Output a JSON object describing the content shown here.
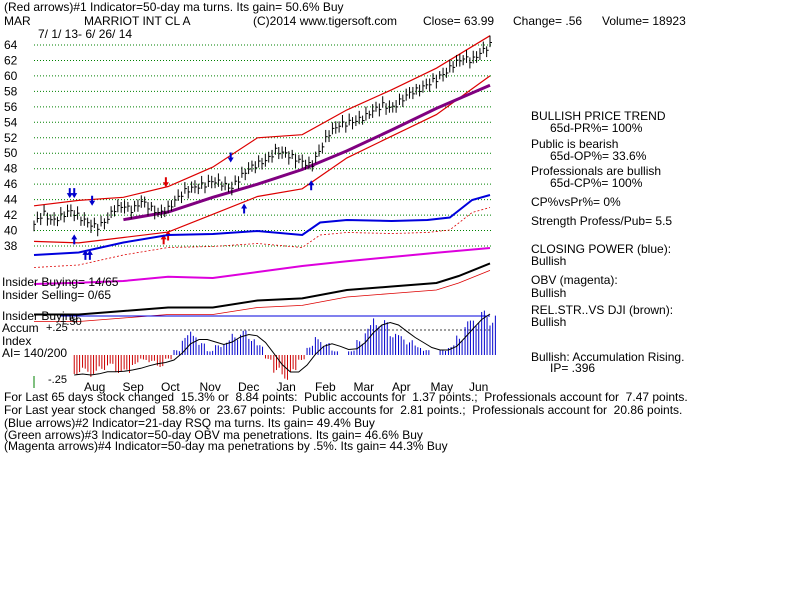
{
  "header": {
    "line1": "(Red arrows)#1 Indicator=50-day ma turns. Its gain= 50.6% Buy",
    "symbol": "MAR",
    "name": "MARRIOT INT CL A",
    "copyright": "(C)2014 www.tigersoft.com",
    "close": "Close= 63.99",
    "change": "Change= .56",
    "volume": "Volume= 18923",
    "range": "7/ 1/ 13- 6/ 26/ 14"
  },
  "side": {
    "trend_title": "BULLISH PRICE TREND",
    "pr": "65d-PR%= 100%",
    "public": "Public is bearish",
    "op": "65d-OP%= 33.6%",
    "prof": "Professionals are bullish",
    "cp": "65d-CP%= 100%",
    "cpvspr": "CP%vsPr%= 0%",
    "strength": "Strength Profess/Pub= 5.5",
    "closing_power": "CLOSING POWER (blue):",
    "cp_status": "Bullish",
    "obv": "OBV (magenta):",
    "obv_status": "Bullish",
    "relstr": "REL.STR..VS DJI (brown):",
    "relstr_status": "Bullish",
    "accum": "Bullish: Accumulation Rising.",
    "ip": "IP= .396"
  },
  "left_labels": {
    "insider_buying": "Insider Buying= 14/65",
    "insider_selling": "Insider Selling= 0/65",
    "insider_buying2": "Insider Buying",
    "accum": "Accum",
    "index": "Index",
    "ai": "AI= 140/200",
    "plus50": "+.50",
    "plus25": "+.25",
    "minus25": "-.25"
  },
  "footer": {
    "l1": "For Last 65 days stock changed  15.3% or  8.84 points:  Public accounts for  1.37 points.;  Professionals account for  7.47 points.",
    "l2": "For Last year stock changed  58.8% or  23.67 points:  Public accounts for  2.81 points.;  Professionals account for  20.86 points.",
    "l3": "(Blue arrows)#2 Indicator=21-day RSQ ma turns. Its gain= 49.4% Buy",
    "l4": "(Green arrows)#3 Indicator=50-day OBV ma penetrations. Its gain= 46.6% Buy",
    "l5": "(Magenta arrows)#4 Indicator=50-day ma penetrations by .5%. Its gain= 44.3% Buy"
  },
  "colors": {
    "price": "#000000",
    "bands": "#dd0000",
    "ma50": "#800080",
    "closing_power": "#0000dd",
    "obv": "#dd00dd",
    "relstr_ma": "#dd0000",
    "accum_pos": "#0000cc",
    "accum_neg": "#cc0000",
    "grid": "#008000",
    "up_arrow": "#0000cc",
    "red_arrow": "#dd0000"
  },
  "chart_data": {
    "type": "line",
    "title": "MARRIOT INT CL A",
    "y_ticks": [
      38,
      40,
      42,
      44,
      46,
      48,
      50,
      52,
      54,
      56,
      58,
      60,
      62,
      64
    ],
    "ylim": [
      37,
      65
    ],
    "months": [
      "Aug",
      "Sep",
      "Oct",
      "Nov",
      "Dec",
      "Jan",
      "Feb",
      "Mar",
      "Apr",
      "May",
      "Jun"
    ],
    "price_close": [
      {
        "t": 0,
        "v": 40.8
      },
      {
        "t": 4,
        "v": 42.3
      },
      {
        "t": 8,
        "v": 41.2
      },
      {
        "t": 12,
        "v": 41.8
      },
      {
        "t": 16,
        "v": 42.6
      },
      {
        "t": 20,
        "v": 41.8
      },
      {
        "t": 24,
        "v": 41.0
      },
      {
        "t": 28,
        "v": 40.4
      },
      {
        "t": 32,
        "v": 41.2
      },
      {
        "t": 36,
        "v": 42.8
      },
      {
        "t": 40,
        "v": 43.2
      },
      {
        "t": 44,
        "v": 42.6
      },
      {
        "t": 48,
        "v": 43.8
      },
      {
        "t": 52,
        "v": 42.9
      },
      {
        "t": 56,
        "v": 42.2
      },
      {
        "t": 60,
        "v": 42.8
      },
      {
        "t": 64,
        "v": 44.2
      },
      {
        "t": 68,
        "v": 45.2
      },
      {
        "t": 72,
        "v": 45.6
      },
      {
        "t": 76,
        "v": 45.9
      },
      {
        "t": 80,
        "v": 46.4
      },
      {
        "t": 84,
        "v": 46.1
      },
      {
        "t": 88,
        "v": 45.4
      },
      {
        "t": 92,
        "v": 46.8
      },
      {
        "t": 96,
        "v": 48.0
      },
      {
        "t": 100,
        "v": 48.6
      },
      {
        "t": 104,
        "v": 49.1
      },
      {
        "t": 108,
        "v": 50.3
      },
      {
        "t": 112,
        "v": 50.0
      },
      {
        "t": 116,
        "v": 49.4
      },
      {
        "t": 120,
        "v": 48.9
      },
      {
        "t": 124,
        "v": 48.3
      },
      {
        "t": 128,
        "v": 50.5
      },
      {
        "t": 132,
        "v": 52.6
      },
      {
        "t": 136,
        "v": 53.6
      },
      {
        "t": 140,
        "v": 53.9
      },
      {
        "t": 144,
        "v": 54.2
      },
      {
        "t": 148,
        "v": 54.7
      },
      {
        "t": 152,
        "v": 55.6
      },
      {
        "t": 156,
        "v": 56.2
      },
      {
        "t": 160,
        "v": 55.8
      },
      {
        "t": 164,
        "v": 56.8
      },
      {
        "t": 168,
        "v": 57.8
      },
      {
        "t": 172,
        "v": 58.2
      },
      {
        "t": 176,
        "v": 58.9
      },
      {
        "t": 180,
        "v": 59.6
      },
      {
        "t": 184,
        "v": 60.4
      },
      {
        "t": 188,
        "v": 61.6
      },
      {
        "t": 192,
        "v": 62.3
      },
      {
        "t": 196,
        "v": 62.0
      },
      {
        "t": 200,
        "v": 63.1
      },
      {
        "t": 204,
        "v": 63.99
      }
    ],
    "ma50": [
      {
        "t": 40,
        "v": 41.4
      },
      {
        "t": 60,
        "v": 42.4
      },
      {
        "t": 80,
        "v": 44.3
      },
      {
        "t": 100,
        "v": 46.0
      },
      {
        "t": 120,
        "v": 47.9
      },
      {
        "t": 140,
        "v": 50.3
      },
      {
        "t": 160,
        "v": 53.0
      },
      {
        "t": 180,
        "v": 55.8
      },
      {
        "t": 204,
        "v": 58.8
      }
    ],
    "band_upper": [
      {
        "t": 0,
        "v": 43.2
      },
      {
        "t": 20,
        "v": 43.9
      },
      {
        "t": 40,
        "v": 44.3
      },
      {
        "t": 60,
        "v": 45.7
      },
      {
        "t": 80,
        "v": 48.2
      },
      {
        "t": 100,
        "v": 52.0
      },
      {
        "t": 120,
        "v": 52.4
      },
      {
        "t": 140,
        "v": 55.6
      },
      {
        "t": 160,
        "v": 58.2
      },
      {
        "t": 180,
        "v": 61.0
      },
      {
        "t": 204,
        "v": 65.2
      }
    ],
    "band_lower": [
      {
        "t": 0,
        "v": 38.6
      },
      {
        "t": 20,
        "v": 38.4
      },
      {
        "t": 40,
        "v": 39.1
      },
      {
        "t": 60,
        "v": 39.8
      },
      {
        "t": 80,
        "v": 42.1
      },
      {
        "t": 100,
        "v": 44.4
      },
      {
        "t": 120,
        "v": 45.4
      },
      {
        "t": 140,
        "v": 49.4
      },
      {
        "t": 160,
        "v": 52.2
      },
      {
        "t": 180,
        "v": 55.0
      },
      {
        "t": 204,
        "v": 60.0
      }
    ],
    "closing_power": [
      {
        "t": 0,
        "v": 0.3
      },
      {
        "t": 20,
        "v": 0.35
      },
      {
        "t": 40,
        "v": 0.55
      },
      {
        "t": 60,
        "v": 0.7
      },
      {
        "t": 80,
        "v": 0.72
      },
      {
        "t": 100,
        "v": 0.78
      },
      {
        "t": 120,
        "v": 0.7
      },
      {
        "t": 128,
        "v": 0.95
      },
      {
        "t": 140,
        "v": 1.0
      },
      {
        "t": 160,
        "v": 0.98
      },
      {
        "t": 176,
        "v": 1.0
      },
      {
        "t": 186,
        "v": 1.05
      },
      {
        "t": 196,
        "v": 1.4
      },
      {
        "t": 204,
        "v": 1.5
      }
    ],
    "obv": [
      {
        "t": 0,
        "v": 0.1
      },
      {
        "t": 20,
        "v": 0.12
      },
      {
        "t": 40,
        "v": 0.15
      },
      {
        "t": 60,
        "v": 0.22
      },
      {
        "t": 80,
        "v": 0.2
      },
      {
        "t": 100,
        "v": 0.3
      },
      {
        "t": 120,
        "v": 0.4
      },
      {
        "t": 140,
        "v": 0.48
      },
      {
        "t": 160,
        "v": 0.55
      },
      {
        "t": 180,
        "v": 0.62
      },
      {
        "t": 204,
        "v": 0.7
      }
    ],
    "relstr": [
      {
        "t": 0,
        "v": 0.05
      },
      {
        "t": 20,
        "v": 0.05
      },
      {
        "t": 40,
        "v": 0.1
      },
      {
        "t": 60,
        "v": 0.15
      },
      {
        "t": 80,
        "v": 0.15
      },
      {
        "t": 100,
        "v": 0.25
      },
      {
        "t": 120,
        "v": 0.28
      },
      {
        "t": 140,
        "v": 0.4
      },
      {
        "t": 160,
        "v": 0.45
      },
      {
        "t": 180,
        "v": 0.5
      },
      {
        "t": 190,
        "v": 0.6
      },
      {
        "t": 204,
        "v": 0.78
      }
    ],
    "accumulation": [
      -0.2,
      -0.18,
      -0.22,
      -0.15,
      -0.12,
      -0.18,
      -0.2,
      -0.1,
      -0.05,
      -0.08,
      -0.12,
      -0.05,
      0.05,
      0.2,
      0.25,
      0.12,
      0.05,
      0.1,
      0.15,
      0.22,
      0.25,
      0.2,
      0.1,
      -0.05,
      -0.18,
      -0.25,
      -0.2,
      -0.05,
      0.1,
      0.18,
      0.12,
      0.05,
      0.0,
      0.05,
      0.15,
      0.3,
      0.4,
      0.35,
      0.25,
      0.2,
      0.15,
      0.1,
      0.05,
      0.0,
      0.05,
      0.1,
      0.2,
      0.35,
      0.42,
      0.45,
      0.42
    ]
  }
}
